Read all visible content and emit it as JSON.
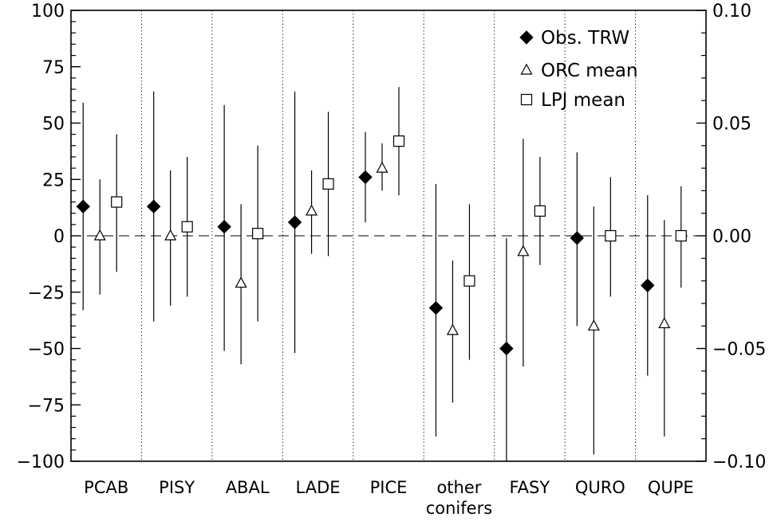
{
  "chart_data": {
    "type": "scatter",
    "categories": [
      "PCAB",
      "PISY",
      "ABAL",
      "LADE",
      "PICE",
      "other conifers",
      "FASY",
      "QURO",
      "QUPE"
    ],
    "category_lines": [
      [
        "PCAB"
      ],
      [
        "PISY"
      ],
      [
        "ABAL"
      ],
      [
        "LADE"
      ],
      [
        "PICE"
      ],
      [
        "other",
        "conifers"
      ],
      [
        "FASY"
      ],
      [
        "QURO"
      ],
      [
        "QUPE"
      ]
    ],
    "ylim": [
      -100,
      100
    ],
    "yticks": [
      100,
      75,
      50,
      25,
      0,
      -25,
      -50,
      -75,
      -100
    ],
    "ytick_labels": [
      "100",
      "75",
      "50",
      "25",
      "0",
      "−25",
      "−50",
      "−75",
      "−100"
    ],
    "y2lim": [
      -0.1,
      0.1
    ],
    "y2ticks": [
      0.1,
      0.05,
      0.0,
      -0.05,
      -0.1
    ],
    "y2tick_labels": [
      "0.10",
      "0.05",
      "0.00",
      "−0.05",
      "−0.10"
    ],
    "zero_line": "dashed",
    "category_separators": "dotted",
    "legend_position": "top-right",
    "series": [
      {
        "name": "Obs. TRW",
        "marker": "filled-diamond",
        "values": [
          13,
          13,
          4,
          6,
          26,
          -32,
          -50,
          -1,
          -22
        ],
        "err_low": [
          -33,
          -38,
          -51,
          -52,
          6,
          -89,
          -103,
          -40,
          -62
        ],
        "err_high": [
          59,
          64,
          58,
          64,
          46,
          23,
          -1,
          37,
          18
        ]
      },
      {
        "name": "ORC mean",
        "marker": "open-triangle",
        "values": [
          0,
          0,
          -21,
          11,
          30,
          -42,
          -7,
          -40,
          -39
        ],
        "err_low": [
          -26,
          -31,
          -57,
          -8,
          20,
          -74,
          -58,
          -97,
          -89
        ],
        "err_high": [
          25,
          29,
          14,
          29,
          41,
          -11,
          43,
          13,
          7
        ]
      },
      {
        "name": "LPJ mean",
        "marker": "open-square",
        "values": [
          15,
          4,
          1,
          23,
          42,
          -20,
          11,
          0,
          0
        ],
        "err_low": [
          -16,
          -27,
          -38,
          -9,
          18,
          -55,
          -13,
          -27,
          -23
        ],
        "err_high": [
          45,
          35,
          40,
          55,
          66,
          14,
          35,
          26,
          22
        ]
      }
    ]
  }
}
